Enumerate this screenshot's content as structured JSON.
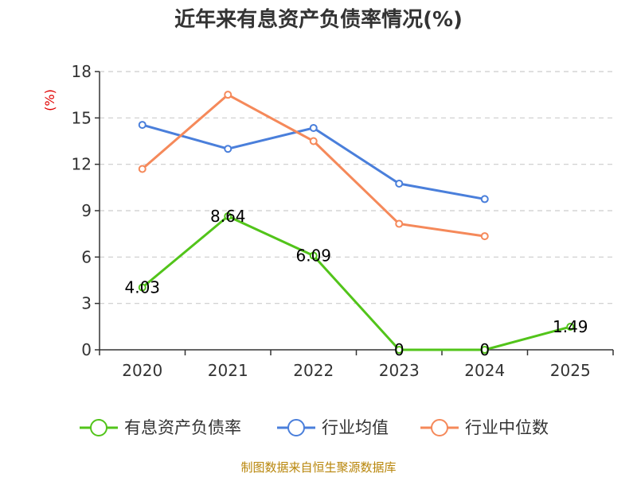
{
  "chart_data": {
    "type": "line",
    "title": "近年来有息资产负债率情况(%)",
    "ylabel": "(%)",
    "xlabel": "",
    "categories": [
      "2020",
      "2021",
      "2022",
      "2023",
      "2024",
      "2025"
    ],
    "ylim": [
      0,
      18
    ],
    "yticks": [
      0,
      3,
      6,
      9,
      12,
      15,
      18
    ],
    "grid": true,
    "legend_position": "bottom",
    "series": [
      {
        "name": "有息资产负债率",
        "color": "#52c41a",
        "values": [
          4.03,
          8.64,
          6.09,
          0,
          0,
          1.49
        ],
        "labels": [
          "4.03",
          "8.64",
          "6.09",
          "0",
          "0",
          "1.49"
        ]
      },
      {
        "name": "行业均值",
        "color": "#4a7fdb",
        "values": [
          14.55,
          13.0,
          14.35,
          10.75,
          9.75,
          null
        ]
      },
      {
        "name": "行业中位数",
        "color": "#f5895a",
        "values": [
          11.7,
          16.5,
          13.5,
          8.15,
          7.35,
          null
        ]
      }
    ]
  },
  "source": "制图数据来自恒生聚源数据库"
}
